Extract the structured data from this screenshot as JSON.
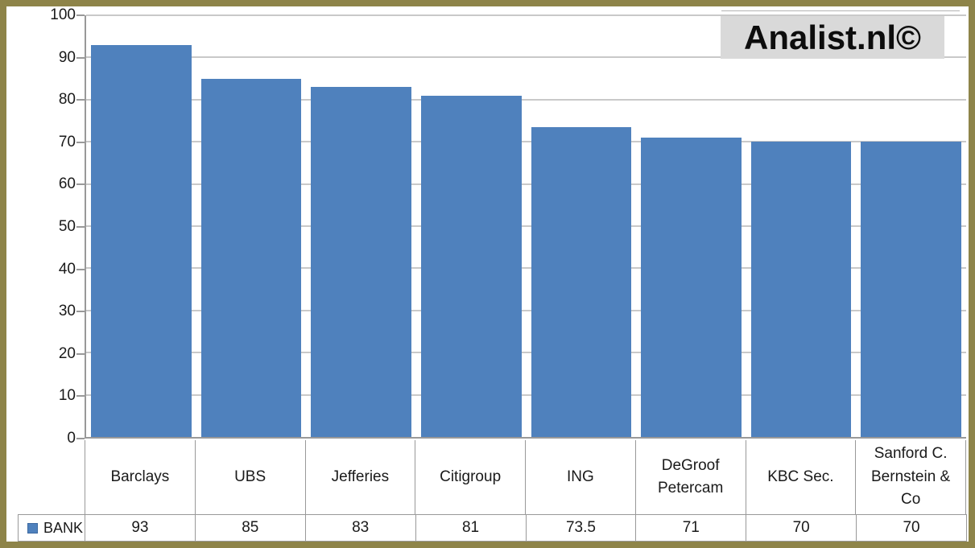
{
  "watermark": {
    "text": "Analist.nl©"
  },
  "legend": {
    "label": "BANK"
  },
  "colors": {
    "frame": "#8e8449",
    "bar": "#4f81bd",
    "gridline": "#c9c9c9",
    "axis": "#999999",
    "table_border": "#999999",
    "watermark_bg": "#d9d9d9",
    "text": "#1a1a1a"
  },
  "chart_data": {
    "type": "bar",
    "title": "",
    "series_name": "BANK",
    "categories": [
      "Barclays",
      "UBS",
      "Jefferies",
      "Citigroup",
      "ING",
      "DeGroof Petercam",
      "KBC Sec.",
      "Sanford C. Bernstein & Co"
    ],
    "values": [
      93,
      85,
      83,
      81,
      73.5,
      71,
      70,
      70
    ],
    "value_labels": [
      "93",
      "85",
      "83",
      "81",
      "73.5",
      "71",
      "70",
      "70"
    ],
    "xlabel": "",
    "ylabel": "",
    "ylim": [
      0,
      100
    ],
    "yticks": [
      0,
      10,
      20,
      30,
      40,
      50,
      60,
      70,
      80,
      90,
      100
    ],
    "grid": true,
    "bar_color": "#4f81bd",
    "legend_position": "data-table-bottom-left",
    "data_table_shown": true
  }
}
